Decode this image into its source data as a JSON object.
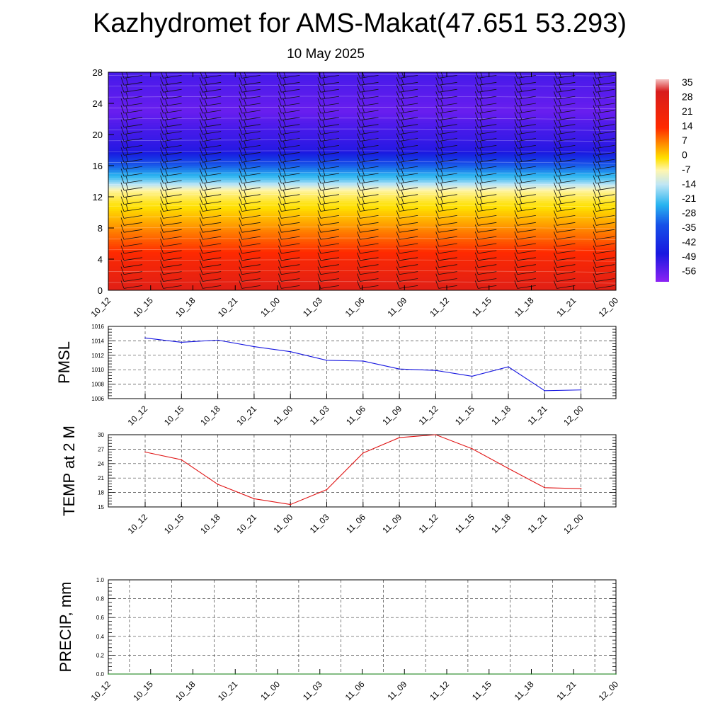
{
  "header": {
    "title": "Kazhydromet for AMS-Makat(47.651 53.293)",
    "subtitle": "10 May 2025"
  },
  "chart_data": [
    {
      "type": "heatmap",
      "name": "vertical-section",
      "title": "",
      "ylabel": "",
      "x_tick_labels": [
        "10_12",
        "10_15",
        "10_18",
        "10_21",
        "11_00",
        "11_03",
        "11_06",
        "11_09",
        "11_12",
        "11_15",
        "11_18",
        "11_21",
        "12_00"
      ],
      "y_ticks": [
        0,
        4,
        8,
        12,
        16,
        20,
        24,
        28
      ],
      "ylim": [
        0,
        28
      ],
      "colorbar": {
        "labels": [
          35,
          28,
          21,
          14,
          7,
          0,
          -7,
          -14,
          -21,
          -28,
          -35,
          -42,
          -49,
          -56
        ],
        "range": [
          -63,
          38
        ]
      },
      "levels_temperature": [
        {
          "level": 0,
          "value": 28
        },
        {
          "level": 4,
          "value": 22
        },
        {
          "level": 8,
          "value": 13
        },
        {
          "level": 11,
          "value": 3
        },
        {
          "level": 12.5,
          "value": -6
        },
        {
          "level": 14,
          "value": -20
        },
        {
          "level": 16,
          "value": -36
        },
        {
          "level": 18,
          "value": -52
        },
        {
          "level": 20,
          "value": -56
        },
        {
          "level": 23,
          "value": -60
        },
        {
          "level": 28,
          "value": -57
        }
      ]
    },
    {
      "type": "line",
      "name": "pmsl",
      "ylabel": "PMSL",
      "x": [
        "10_12",
        "10_15",
        "10_18",
        "10_21",
        "11_00",
        "11_03",
        "11_06",
        "11_09",
        "11_12",
        "11_15",
        "11_18",
        "11_21",
        "12_00"
      ],
      "values": [
        1014.4,
        1013.8,
        1014.1,
        1013.2,
        1012.5,
        1011.3,
        1011.2,
        1010.1,
        1009.9,
        1009.1,
        1010.4,
        1007.1,
        1007.2
      ],
      "y_ticks": [
        1006,
        1008,
        1010,
        1012,
        1014,
        1016
      ],
      "ylim": [
        1006,
        1016
      ],
      "color": "#1515e0"
    },
    {
      "type": "line",
      "name": "temp-2m",
      "ylabel": "TEMP at 2 M",
      "x": [
        "10_12",
        "10_15",
        "10_18",
        "10_21",
        "11_00",
        "11_03",
        "11_06",
        "11_09",
        "11_12",
        "11_15",
        "11_18",
        "11_21",
        "12_00"
      ],
      "values": [
        26.4,
        24.8,
        19.7,
        16.7,
        15.5,
        18.6,
        26.2,
        29.4,
        30.0,
        27.1,
        23.0,
        19.0,
        18.8
      ],
      "y_ticks": [
        15,
        18,
        21,
        24,
        27,
        30
      ],
      "ylim": [
        15,
        30
      ],
      "color": "#e01515"
    },
    {
      "type": "line",
      "name": "precip",
      "ylabel": "PRECIP, mm",
      "x": [
        "10_12",
        "10_15",
        "10_18",
        "10_21",
        "11_00",
        "11_03",
        "11_06",
        "11_09",
        "11_12",
        "11_15",
        "11_18",
        "11_21",
        "12_00"
      ],
      "values": [
        0,
        0,
        0,
        0,
        0,
        0,
        0,
        0,
        0,
        0,
        0,
        0,
        0
      ],
      "y_ticks": [
        "0.0",
        "0.2",
        "0.4",
        "0.6",
        "0.8",
        "1.0"
      ],
      "ylim": [
        0,
        1
      ],
      "color": "#0a7a0a"
    }
  ]
}
